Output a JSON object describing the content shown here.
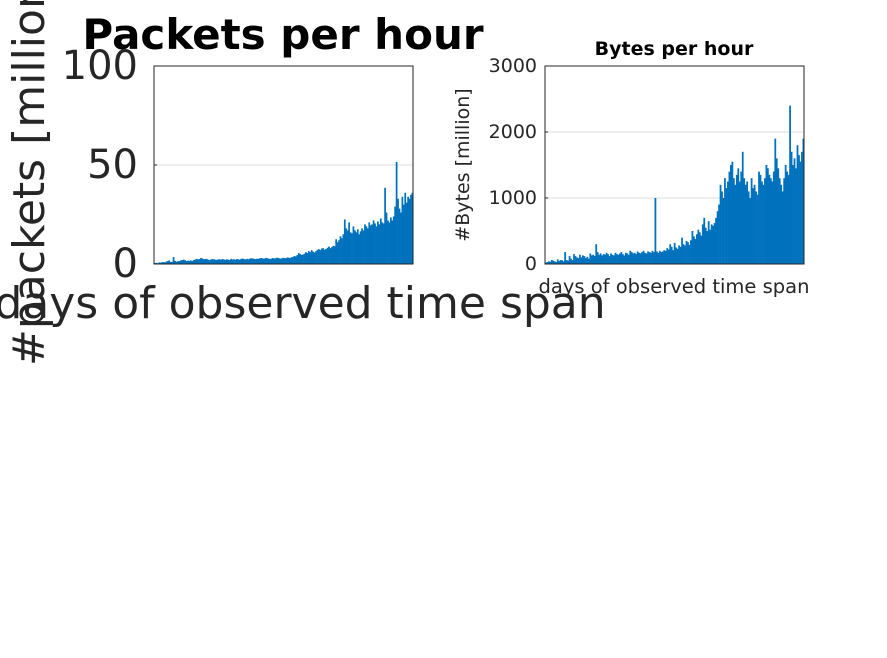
{
  "colors": {
    "bar": "#0072bd",
    "axis": "#262626",
    "grid": "#dcdcdc",
    "background": "#ffffff"
  },
  "chart_data": [
    {
      "type": "bar",
      "title": "Packets per hour",
      "xlabel": "days of observed time span",
      "ylabel": "#packets [million]",
      "ylim": [
        0,
        100
      ],
      "yticks": [
        "0",
        "50",
        "100"
      ],
      "grid": true,
      "x_ticks_shown": false,
      "series": [
        {
          "values": [
            0.5,
            0.6,
            0.4,
            0.8,
            0.7,
            0.9,
            1.0,
            0.8,
            1.2,
            1.5,
            1.8,
            1.0,
            1.1,
            3.5,
            1.6,
            1.2,
            1.4,
            1.5,
            1.8,
            2.0,
            2.2,
            1.9,
            1.5,
            1.7,
            1.6,
            1.8,
            1.5,
            2.0,
            2.2,
            2.6,
            2.4,
            2.5,
            3.0,
            2.8,
            2.4,
            2.5,
            2.6,
            2.2,
            2.0,
            2.3,
            2.5,
            2.4,
            2.2,
            2.1,
            2.3,
            2.4,
            2.2,
            2.5,
            2.3,
            2.1,
            2.4,
            2.2,
            2.0,
            2.6,
            2.3,
            2.4,
            2.2,
            2.5,
            2.4,
            2.2,
            2.6,
            2.8,
            2.5,
            2.3,
            2.6,
            2.4,
            2.7,
            2.9,
            2.8,
            2.6,
            2.5,
            2.7,
            2.6,
            2.9,
            3.0,
            2.8,
            2.7,
            3.1,
            2.9,
            2.8,
            2.5,
            2.7,
            3.0,
            2.8,
            2.9,
            3.2,
            3.0,
            2.7,
            2.8,
            3.1,
            3.0,
            2.9,
            3.3,
            3.2,
            3.0,
            3.4,
            3.6,
            4.0,
            3.8,
            4.5,
            5.5,
            5.0,
            4.6,
            4.8,
            5.2,
            6.0,
            5.5,
            6.5,
            6.0,
            7.0,
            6.2,
            5.8,
            6.5,
            7.2,
            7.5,
            7.0,
            7.8,
            8.0,
            7.2,
            7.6,
            8.2,
            8.8,
            8.0,
            8.5,
            9.2,
            9.0,
            12.5,
            11.0,
            12.0,
            14.0,
            13.0,
            15.0,
            22.5,
            18.0,
            17.0,
            21.0,
            16.0,
            15.5,
            19.0,
            17.0,
            16.0,
            17.5,
            15.0,
            16.5,
            18.0,
            17.0,
            20.0,
            19.0,
            18.0,
            21.0,
            19.5,
            20.0,
            22.0,
            20.5,
            19.0,
            21.5,
            20.0,
            23.0,
            21.0,
            20.5,
            38.5,
            26.0,
            22.0,
            21.0,
            23.5,
            22.0,
            24.0,
            29.0,
            51.5,
            33.0,
            28.0,
            26.0,
            34.0,
            30.0,
            36.0,
            31.0,
            34.0,
            33.0,
            35.0,
            36.0
          ]
        }
      ]
    },
    {
      "type": "bar",
      "title": "Bytes per hour",
      "xlabel": "days of observed time span",
      "ylabel": "#Bytes [million]",
      "ylim": [
        0,
        3000
      ],
      "yticks": [
        "0",
        "1000",
        "2000",
        "3000"
      ],
      "grid": true,
      "x_ticks_shown": false,
      "series": [
        {
          "values": [
            20,
            30,
            40,
            35,
            60,
            50,
            40,
            30,
            70,
            45,
            60,
            55,
            40,
            180,
            60,
            50,
            120,
            80,
            60,
            150,
            120,
            100,
            90,
            140,
            100,
            130,
            120,
            90,
            110,
            80,
            160,
            130,
            140,
            120,
            300,
            180,
            140,
            160,
            130,
            150,
            140,
            170,
            150,
            120,
            160,
            140,
            130,
            170,
            150,
            140,
            160,
            180,
            150,
            130,
            170,
            160,
            140,
            200,
            180,
            160,
            170,
            150,
            190,
            170,
            160,
            180,
            200,
            170,
            160,
            190,
            180,
            170,
            200,
            180,
            1000,
            190,
            170,
            200,
            180,
            190,
            210,
            200,
            240,
            220,
            300,
            260,
            210,
            320,
            250,
            230,
            280,
            260,
            400,
            300,
            280,
            350,
            330,
            290,
            360,
            500,
            420,
            380,
            450,
            520,
            480,
            430,
            600,
            700,
            550,
            500,
            650,
            520,
            600,
            580,
            620,
            700,
            800,
            900,
            1200,
            1100,
            1000,
            1300,
            1150,
            1250,
            1400,
            1500,
            1550,
            1300,
            1200,
            1350,
            1450,
            1250,
            1400,
            1700,
            1300,
            1200,
            1250,
            1100,
            1000,
            1300,
            1150,
            1200,
            1100,
            1050,
            1400,
            1350,
            1250,
            1200,
            1300,
            1500,
            1450,
            1350,
            1300,
            1250,
            1400,
            1900,
            1600,
            1450,
            1300,
            1200,
            1100,
            1300,
            1500,
            1400,
            1350,
            2400,
            1700,
            1500,
            1600,
            1450,
            1800,
            1650,
            1550,
            1700,
            1900
          ]
        }
      ]
    }
  ]
}
